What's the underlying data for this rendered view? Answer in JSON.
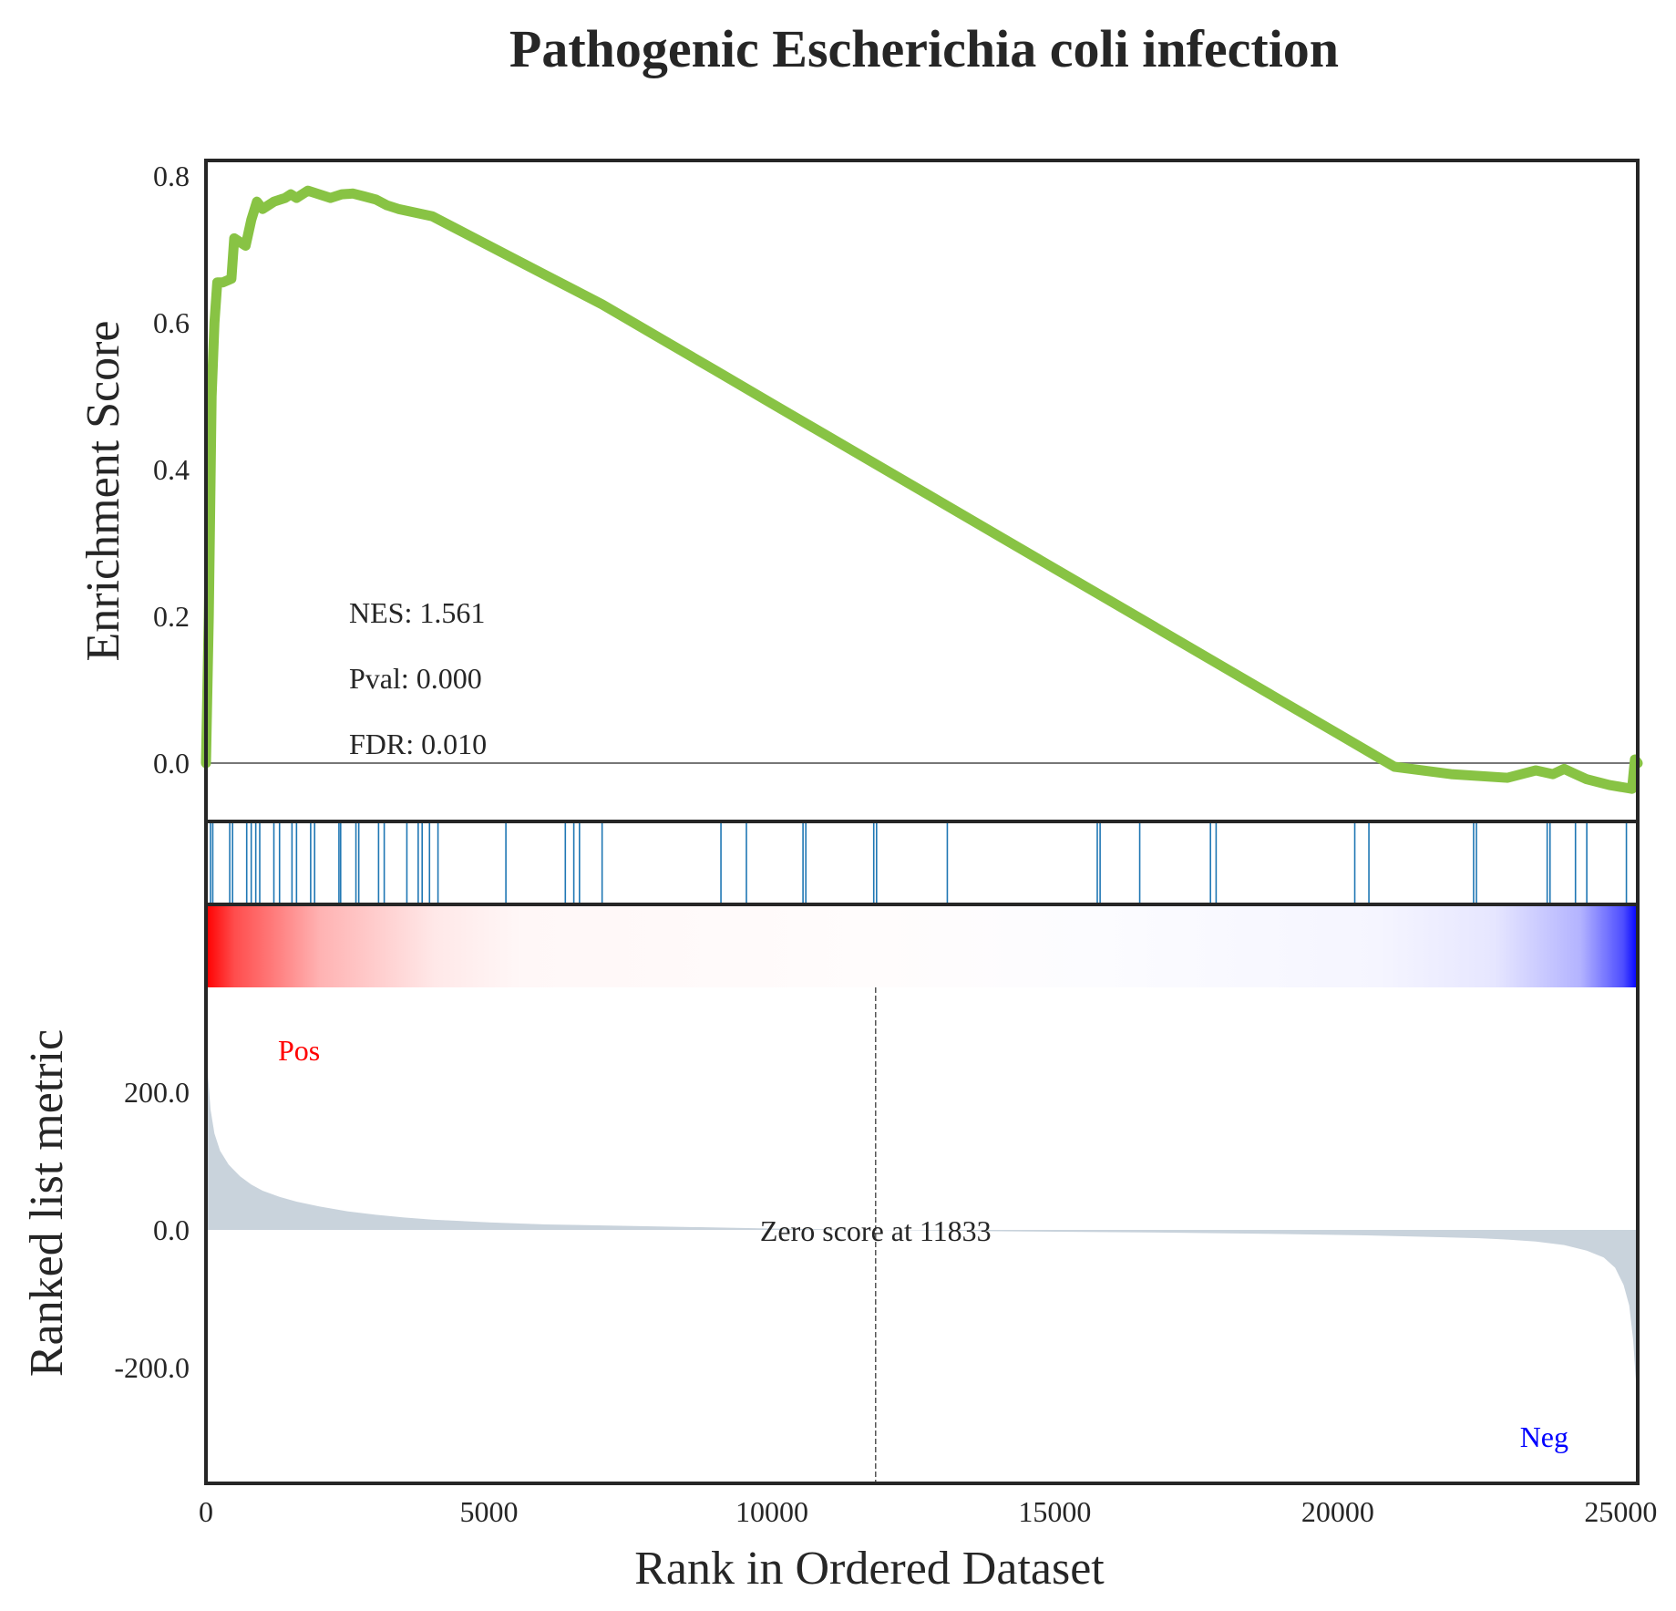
{
  "chart_data": {
    "type": "line",
    "title": "Pathogenic Escherichia coli infection",
    "xlabel": "Rank in Ordered Dataset",
    "xlim": [
      0,
      25300
    ],
    "x_ticks": [
      "0",
      "5000",
      "10000",
      "15000",
      "20000",
      "25000"
    ],
    "panels": [
      {
        "name": "enrichment",
        "ylabel": "Enrichment Score",
        "ylim": [
          -0.08,
          0.82
        ],
        "y_ticks": [
          "0.0",
          "0.2",
          "0.4",
          "0.6",
          "0.8"
        ],
        "line_color": "#88c344",
        "series": [
          {
            "x": [
              0,
              50,
              100,
              150,
              200,
              300,
              450,
              500,
              700,
              800,
              900,
              1000,
              1200,
              1400,
              1500,
              1600,
              1800,
              2000,
              2200,
              2400,
              2600,
              2800,
              3000,
              3200,
              3400,
              3700,
              4000,
              5000,
              6000,
              7000,
              8000,
              9000,
              10000,
              11000,
              12000,
              13000,
              14000,
              15000,
              16000,
              17000,
              18000,
              19000,
              20000,
              21000,
              22000,
              23000,
              23500,
              23800,
              24000,
              24200,
              24400,
              24800,
              25200,
              25250,
              25300
            ],
            "y": [
              0.0,
              0.2,
              0.5,
              0.6,
              0.655,
              0.655,
              0.66,
              0.715,
              0.705,
              0.74,
              0.765,
              0.755,
              0.765,
              0.77,
              0.775,
              0.77,
              0.78,
              0.775,
              0.77,
              0.775,
              0.776,
              0.772,
              0.768,
              0.76,
              0.755,
              0.75,
              0.745,
              0.705,
              0.665,
              0.625,
              0.58,
              0.535,
              0.49,
              0.445,
              0.4,
              0.355,
              0.31,
              0.265,
              0.22,
              0.175,
              0.13,
              0.085,
              0.04,
              -0.005,
              -0.015,
              -0.02,
              -0.01,
              -0.015,
              -0.008,
              -0.015,
              -0.022,
              -0.03,
              -0.035,
              0.005,
              0.0
            ]
          }
        ],
        "annotations": [
          "NES: 1.561",
          "Pval: 0.000",
          "FDR: 0.010"
        ]
      },
      {
        "name": "hits",
        "hit_color": "#1f77b4",
        "hits": [
          80,
          120,
          420,
          470,
          720,
          800,
          880,
          950,
          1200,
          1300,
          1520,
          1600,
          1850,
          1920,
          2350,
          2380,
          2650,
          2700,
          3050,
          3150,
          3550,
          3750,
          3820,
          3950,
          4100,
          5300,
          6350,
          6500,
          6600,
          7000,
          9100,
          9550,
          10550,
          10600,
          11800,
          11850,
          13100,
          15750,
          15800,
          16500,
          17750,
          17850,
          20300,
          20550,
          22400,
          22450,
          23700,
          23750,
          24200,
          24400,
          25100
        ]
      },
      {
        "name": "ranked-metric",
        "ylabel": "Ranked list metric",
        "ylim": [
          -360,
          340
        ],
        "y_ticks": [
          "200.0",
          "0.0",
          "-200.0"
        ],
        "fill_color": "#c9d3dc",
        "series": [
          {
            "x": [
              0,
              30,
              80,
              150,
              250,
              400,
              600,
              800,
              1000,
              1300,
              1600,
              2000,
              2500,
              3000,
              3500,
              4000,
              5000,
              6000,
              8000,
              10000,
              11833,
              14000,
              17000,
              19000,
              20500,
              21500,
              22500,
              23000,
              23500,
              24000,
              24400,
              24700,
              24900,
              25050,
              25150,
              25220,
              25260,
              25300
            ],
            "y": [
              310,
              230,
              175,
              140,
              115,
              95,
              78,
              66,
              57,
              48,
              41,
              34,
              27,
              22,
              18,
              15,
              11,
              8,
              5,
              2,
              0,
              -2,
              -4,
              -6,
              -8,
              -10,
              -12,
              -14,
              -17,
              -22,
              -30,
              -40,
              -55,
              -80,
              -110,
              -160,
              -210,
              -250
            ]
          }
        ],
        "zero_cross": 11833,
        "zero_label": "Zero score at 11833",
        "pos_label": "Pos",
        "neg_label": "Neg",
        "pos_color": "#ff0000",
        "neg_color": "#0000ff"
      }
    ]
  }
}
